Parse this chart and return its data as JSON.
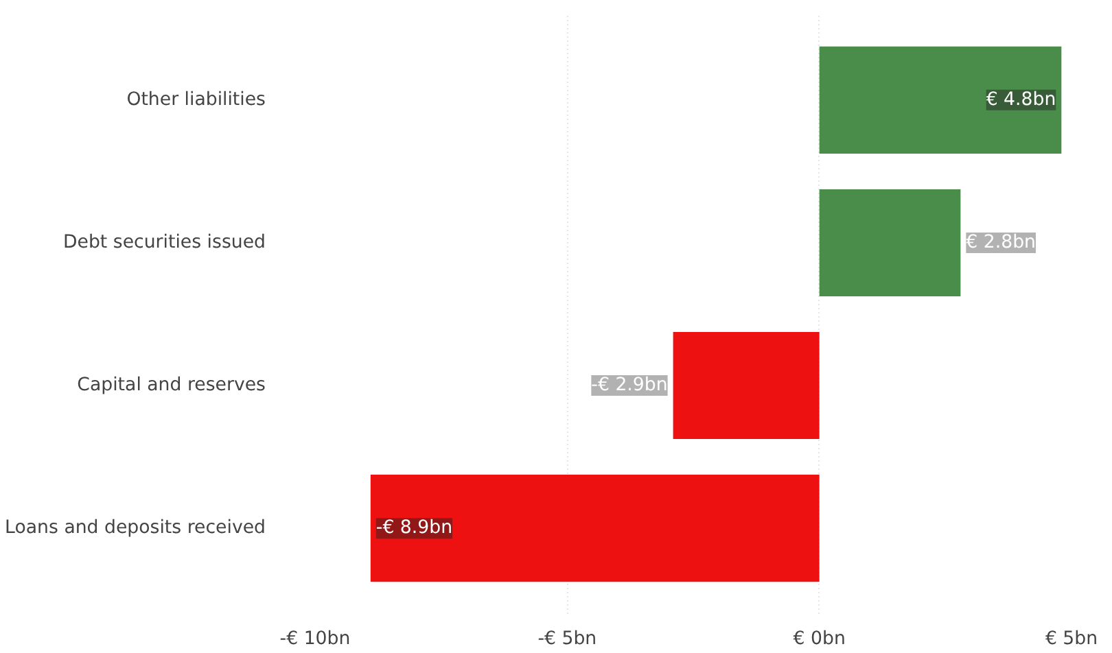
{
  "chart_data": {
    "type": "bar",
    "orientation": "horizontal",
    "categories": [
      "Other liabilities",
      "Debt securities issued",
      "Capital and reserves",
      "Loans and deposits received"
    ],
    "values": [
      4.8,
      2.8,
      -2.9,
      -8.9
    ],
    "colors": [
      "#4a8c4a",
      "#4a8c4a",
      "#ee1111",
      "#ee1111"
    ],
    "value_labels": [
      "€ 4.8bn",
      "€ 2.8bn",
      "-€ 2.9bn",
      "-€ 8.9bn"
    ],
    "xlim": [
      -10,
      5
    ],
    "xticks": [
      {
        "value": -10,
        "label": "-€ 10bn"
      },
      {
        "value": -5,
        "label": "-€ 5bn"
      },
      {
        "value": 0,
        "label": "€ 0bn"
      },
      {
        "value": 5,
        "label": "€ 5bn"
      }
    ],
    "grid": "x"
  }
}
